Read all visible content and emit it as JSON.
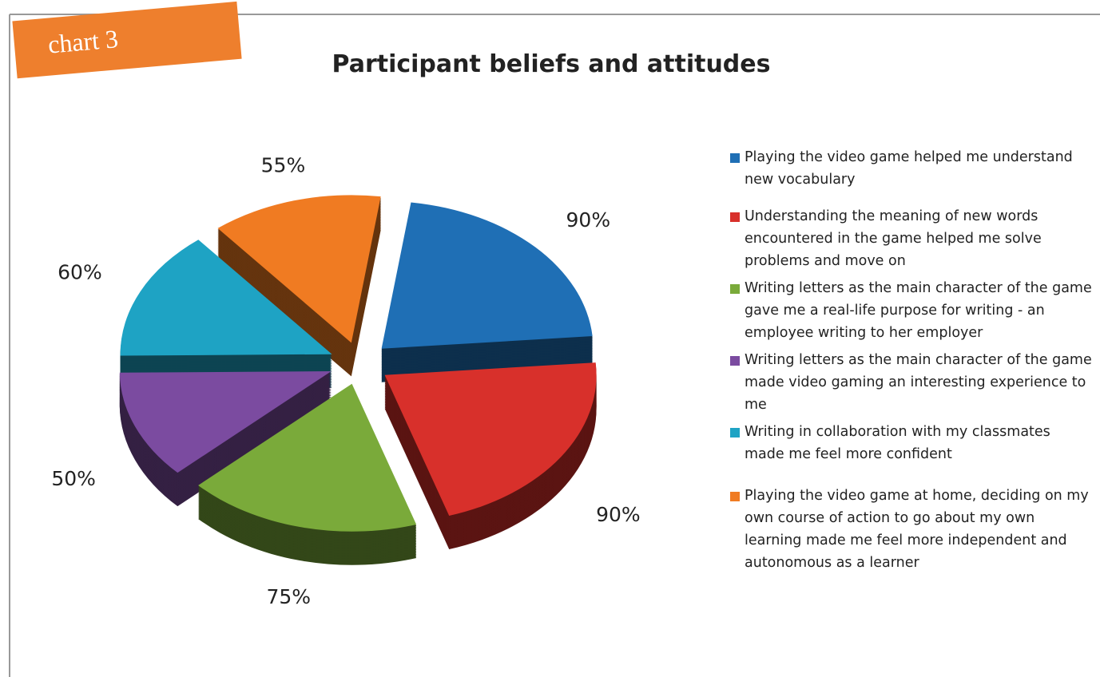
{
  "chart_data": {
    "type": "pie",
    "badge": "chart 3",
    "title": "Participant beliefs and attitudes",
    "categories": [
      "Playing the video game helped me understand new vocabulary",
      "Understanding the meaning of new words encountered in the game helped me solve problems and move on",
      "Writing letters as the main character of the game gave me a real-life purpose for writing - an employee writing  to her employer",
      "Writing letters as the main character of the game made video gaming an interesting experience to me",
      "Writing in collaboration with my classmates made me feel more confident",
      "Playing the video game at home, deciding on my own course of action to go about my own learning made me feel more independent and autonomous as a learner"
    ],
    "values": [
      90,
      90,
      75,
      50,
      60,
      55
    ],
    "value_labels": [
      "90%",
      "90%",
      "75%",
      "50%",
      "60%",
      "55%"
    ],
    "colors": [
      "#1f6fb5",
      "#d8302b",
      "#7aaa3a",
      "#7b4ba0",
      "#1ea3c4",
      "#f07b22"
    ],
    "legend": "right"
  }
}
